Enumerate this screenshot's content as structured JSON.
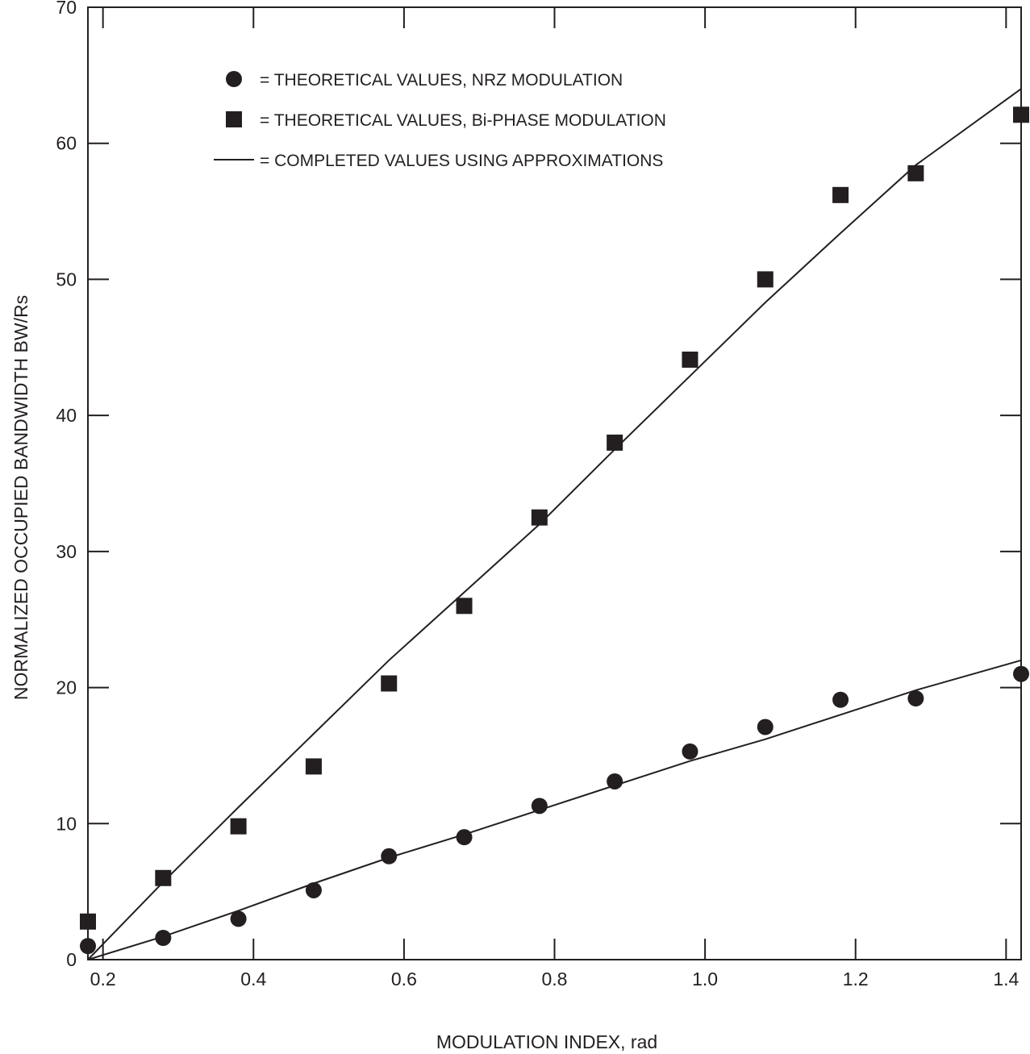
{
  "chart_data": {
    "type": "scatter",
    "title": "",
    "xlabel": "MODULATION INDEX, rad",
    "ylabel": "NORMALIZED OCCUPIED BANDWIDTH BW/Rs",
    "xlim": [
      0.18,
      1.42
    ],
    "ylim": [
      0,
      70
    ],
    "xticks": [
      0.2,
      0.4,
      0.6,
      0.8,
      1.0,
      1.2,
      1.4
    ],
    "xtick_labels": [
      "0.2",
      "0.4",
      "0.6",
      "0.8",
      "1.0",
      "1.2",
      "1.4"
    ],
    "yticks": [
      0,
      10,
      20,
      30,
      40,
      50,
      60,
      70
    ],
    "ytick_labels": [
      "0",
      "10",
      "20",
      "30",
      "40",
      "50",
      "60",
      "70"
    ],
    "grid": false,
    "legend_position": "top-left",
    "color": "#231f20",
    "series": [
      {
        "name": "= THEORETICAL VALUES, NRZ MODULATION",
        "marker": "circle",
        "x": [
          0.18,
          0.28,
          0.38,
          0.48,
          0.58,
          0.68,
          0.78,
          0.88,
          0.98,
          1.08,
          1.18,
          1.28,
          1.42
        ],
        "y": [
          1.0,
          1.6,
          3.0,
          5.1,
          7.6,
          9.0,
          11.3,
          13.1,
          15.3,
          17.1,
          19.1,
          19.2,
          21.0
        ]
      },
      {
        "name": "= THEORETICAL VALUES, Bi-PHASE MODULATION",
        "marker": "square",
        "x": [
          0.18,
          0.28,
          0.38,
          0.48,
          0.58,
          0.68,
          0.78,
          0.88,
          0.98,
          1.08,
          1.18,
          1.28,
          1.42
        ],
        "y": [
          2.8,
          6.0,
          9.8,
          14.2,
          20.3,
          26.0,
          32.5,
          38.0,
          44.1,
          50.0,
          56.2,
          57.8,
          62.1
        ]
      },
      {
        "name": "= COMPLETED VALUES USING APPROXIMATIONS",
        "marker": "line",
        "lines": [
          {
            "x": [
              0.18,
              0.28,
              0.38,
              0.48,
              0.58,
              0.68,
              0.78,
              0.88,
              0.98,
              1.08,
              1.18,
              1.28,
              1.42
            ],
            "y": [
              0,
              1.7,
              3.6,
              5.6,
              7.5,
              9.2,
              11.0,
              12.8,
              14.6,
              16.2,
              18.0,
              19.8,
              22.0
            ]
          },
          {
            "x": [
              0.18,
              0.28,
              0.38,
              0.48,
              0.58,
              0.68,
              0.78,
              0.88,
              0.98,
              1.08,
              1.18,
              1.28,
              1.42
            ],
            "y": [
              0,
              5.7,
              11.2,
              16.6,
              22.0,
              27.0,
              32.0,
              37.5,
              42.9,
              48.3,
              53.4,
              58.4,
              64.0
            ]
          }
        ]
      }
    ]
  }
}
